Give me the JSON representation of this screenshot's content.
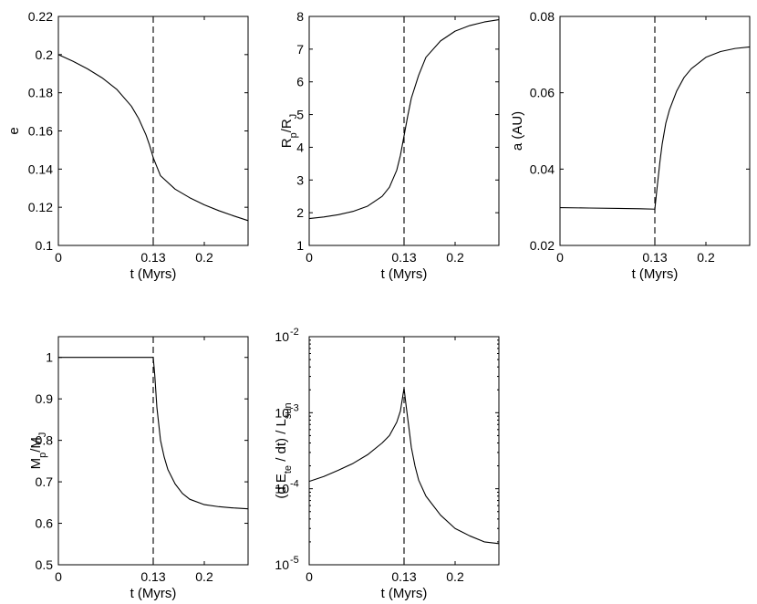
{
  "chart_data": [
    {
      "type": "line",
      "xlabel": "t (Myrs)",
      "ylabel": "e",
      "xlim": [
        0,
        0.26
      ],
      "ylim": [
        0.1,
        0.22
      ],
      "xticks": [
        0,
        0.13,
        0.2
      ],
      "xtick_labels": [
        "0",
        "0.13",
        "0.2"
      ],
      "yticks": [
        0.1,
        0.12,
        0.14,
        0.16,
        0.18,
        0.2,
        0.22
      ],
      "ytick_labels": [
        "0.1",
        "0.12",
        "0.14",
        "0.16",
        "0.18",
        "0.2",
        "0.22"
      ],
      "vline_x": 0.13,
      "series": [
        {
          "x": [
            0,
            0.02,
            0.04,
            0.06,
            0.08,
            0.1,
            0.11,
            0.12,
            0.125,
            0.13,
            0.14,
            0.16,
            0.18,
            0.2,
            0.22,
            0.24,
            0.26
          ],
          "values": [
            0.2,
            0.1965,
            0.1925,
            0.1878,
            0.1818,
            0.173,
            0.1665,
            0.158,
            0.1525,
            0.146,
            0.1365,
            0.1295,
            0.125,
            0.1213,
            0.1182,
            0.1155,
            0.113
          ]
        }
      ]
    },
    {
      "type": "line",
      "xlabel": "t (Myrs)",
      "ylabel": {
        "main1": "R",
        "sub1": "p",
        "main2": "/R",
        "sub2": "J"
      },
      "xlim": [
        0,
        0.26
      ],
      "ylim": [
        1,
        8
      ],
      "xticks": [
        0,
        0.13,
        0.2
      ],
      "xtick_labels": [
        "0",
        "0.13",
        "0.2"
      ],
      "yticks": [
        1,
        2,
        3,
        4,
        5,
        6,
        7,
        8
      ],
      "ytick_labels": [
        "1",
        "2",
        "3",
        "4",
        "5",
        "6",
        "7",
        "8"
      ],
      "vline_x": 0.13,
      "series": [
        {
          "x": [
            0,
            0.02,
            0.04,
            0.06,
            0.08,
            0.1,
            0.11,
            0.12,
            0.125,
            0.13,
            0.135,
            0.14,
            0.15,
            0.16,
            0.18,
            0.2,
            0.22,
            0.24,
            0.26
          ],
          "values": [
            1.82,
            1.87,
            1.94,
            2.04,
            2.2,
            2.5,
            2.78,
            3.3,
            3.75,
            4.35,
            4.95,
            5.5,
            6.2,
            6.75,
            7.25,
            7.55,
            7.72,
            7.83,
            7.9
          ]
        }
      ]
    },
    {
      "type": "line",
      "xlabel": "t (Myrs)",
      "ylabel": "a (AU)",
      "xlim": [
        0,
        0.26
      ],
      "ylim": [
        0.02,
        0.08
      ],
      "xticks": [
        0,
        0.13,
        0.2
      ],
      "xtick_labels": [
        "0",
        "0.13",
        "0.2"
      ],
      "yticks": [
        0.02,
        0.04,
        0.06,
        0.08
      ],
      "ytick_labels": [
        "0.02",
        "0.04",
        "0.06",
        "0.08"
      ],
      "vline_x": 0.13,
      "series": [
        {
          "x": [
            0,
            0.04,
            0.08,
            0.11,
            0.13,
            0.133,
            0.137,
            0.14,
            0.145,
            0.15,
            0.16,
            0.17,
            0.18,
            0.2,
            0.22,
            0.24,
            0.26
          ],
          "values": [
            0.0299,
            0.0298,
            0.0297,
            0.0296,
            0.0295,
            0.035,
            0.042,
            0.0465,
            0.052,
            0.0555,
            0.0605,
            0.064,
            0.0663,
            0.0693,
            0.0708,
            0.0716,
            0.072
          ]
        }
      ]
    },
    {
      "type": "line",
      "xlabel": "t (Myrs)",
      "ylabel": {
        "main1": "M",
        "sub1": "p",
        "main2": "/M",
        "sub2": "J"
      },
      "xlim": [
        0,
        0.26
      ],
      "ylim": [
        0.5,
        1.05
      ],
      "xticks": [
        0,
        0.13,
        0.2
      ],
      "xtick_labels": [
        "0",
        "0.13",
        "0.2"
      ],
      "yticks": [
        0.5,
        0.6,
        0.7,
        0.8,
        0.9,
        1.0
      ],
      "ytick_labels": [
        "0.5",
        "0.6",
        "0.7",
        "0.8",
        "0.9",
        "1"
      ],
      "vline_x": 0.13,
      "series": [
        {
          "x": [
            0,
            0.13,
            0.132,
            0.135,
            0.14,
            0.145,
            0.15,
            0.16,
            0.17,
            0.18,
            0.2,
            0.22,
            0.24,
            0.26
          ],
          "values": [
            1.0,
            1.0,
            0.96,
            0.88,
            0.8,
            0.76,
            0.73,
            0.695,
            0.672,
            0.658,
            0.645,
            0.64,
            0.637,
            0.635
          ]
        }
      ]
    },
    {
      "type": "line",
      "log_y": true,
      "xlabel": "t (Myrs)",
      "ylabel": {
        "p1": "(d E",
        "sub1": "te",
        "p2": " / dt) / L",
        "sub2": "sun"
      },
      "xlim": [
        0,
        0.26
      ],
      "ylim": [
        1e-05,
        0.01
      ],
      "xticks": [
        0,
        0.13,
        0.2
      ],
      "xtick_labels": [
        "0",
        "0.13",
        "0.2"
      ],
      "yticks": [
        1e-05,
        0.0001,
        0.001,
        0.01
      ],
      "ytick_labels": [
        {
          "base": "10",
          "exp": "-5"
        },
        {
          "base": "10",
          "exp": "-4"
        },
        {
          "base": "10",
          "exp": "-3"
        },
        {
          "base": "10",
          "exp": "-2"
        }
      ],
      "vline_x": 0.13,
      "series": [
        {
          "x": [
            0,
            0.02,
            0.04,
            0.06,
            0.08,
            0.1,
            0.11,
            0.12,
            0.125,
            0.13,
            0.133,
            0.137,
            0.14,
            0.145,
            0.15,
            0.16,
            0.18,
            0.2,
            0.22,
            0.24,
            0.26
          ],
          "values": [
            0.000125,
            0.000145,
            0.000175,
            0.000215,
            0.00028,
            0.0004,
            0.0005,
            0.00075,
            0.00105,
            0.0021,
            0.0012,
            0.0006,
            0.00035,
            0.0002,
            0.00013,
            8e-05,
            4.5e-05,
            3e-05,
            2.4e-05,
            2e-05,
            1.9e-05
          ]
        }
      ]
    }
  ]
}
